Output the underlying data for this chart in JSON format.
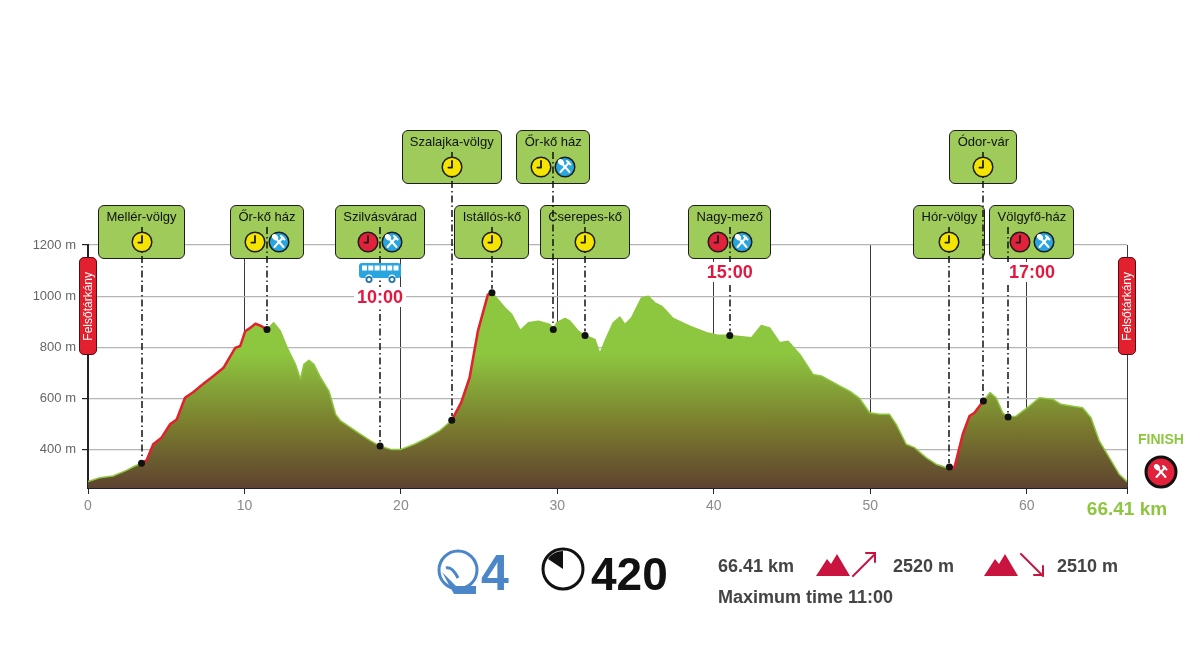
{
  "chart_data": {
    "type": "area",
    "x": [
      0,
      0.75,
      1.6,
      2.46,
      3.0,
      3.42,
      3.74,
      4.17,
      4.7,
      5.24,
      5.67,
      6.2,
      6.74,
      7.38,
      8.02,
      8.66,
      9.41,
      9.73,
      10.05,
      10.37,
      10.7,
      11.02,
      11.44,
      11.87,
      12.3,
      12.73,
      13.26,
      13.58,
      13.8,
      14.12,
      14.44,
      14.87,
      15.4,
      15.83,
      16.15,
      16.79,
      17.43,
      18.07,
      18.67,
      19.36,
      20.0,
      20.86,
      21.71,
      22.46,
      23.25,
      23.85,
      24.39,
      24.92,
      25.56,
      25.82,
      26.02,
      26.66,
      27.09,
      27.62,
      28.15,
      28.79,
      29.53,
      29.74,
      29.96,
      30.49,
      30.81,
      31.34,
      31.77,
      32.4,
      32.72,
      33.04,
      33.57,
      34.0,
      34.32,
      34.74,
      35.38,
      35.81,
      36.23,
      36.66,
      37.4,
      38.47,
      39.53,
      40.17,
      41.02,
      42.4,
      43.04,
      43.57,
      44.21,
      44.74,
      45.5,
      46.34,
      46.87,
      48.04,
      48.68,
      49.32,
      49.96,
      50.6,
      51.23,
      51.66,
      52.3,
      52.83,
      53.57,
      54.21,
      54.85,
      55.06,
      55.38,
      55.91,
      56.34,
      56.66,
      57.23,
      57.66,
      58.04,
      58.47,
      58.81,
      59.32,
      60.17,
      60.81,
      61.66,
      62.19,
      62.94,
      63.57,
      64.11,
      64.64,
      65.28,
      65.91,
      66.41
    ],
    "series": [
      {
        "type": "area",
        "color": "#e3202c",
        "x": [
          3.42,
          3.74,
          4.17,
          4.7,
          5.24,
          5.67,
          6.2,
          6.74,
          7.38,
          8.02,
          8.66,
          9.41,
          9.73,
          10.05,
          10.37,
          10.7,
          11.02,
          11.44
        ],
        "values": [
          347,
          358,
          421,
          447,
          499,
          518,
          603,
          625,
          658,
          688,
          720,
          798,
          805,
          863,
          876,
          892,
          885,
          870
        ]
      },
      {
        "type": "area",
        "color": "#e3202c",
        "x": [
          23.25,
          23.85,
          24.39,
          24.92,
          25.56,
          25.82
        ],
        "values": [
          515,
          584,
          681,
          863,
          1006,
          1013
        ]
      },
      {
        "type": "area",
        "color": "#e3202c",
        "x": [
          55.06,
          55.38,
          55.91,
          56.34,
          56.66,
          57.23
        ],
        "values": [
          332,
          330,
          460,
          531,
          544,
          590
        ]
      },
      {
        "color": "#8dc63f",
        "values": [
          275,
          290,
          297,
          319,
          336,
          347,
          358,
          421,
          447,
          499,
          518,
          603,
          625,
          658,
          688,
          720,
          798,
          805,
          863,
          876,
          892,
          885,
          870,
          896,
          863,
          798,
          733,
          675,
          733,
          749,
          733,
          681,
          629,
          538,
          512,
          486,
          460,
          434,
          414,
          401,
          401,
          421,
          447,
          473,
          515,
          584,
          681,
          863,
          1006,
          1013,
          1000,
          954,
          928,
          866,
          896,
          902,
          889,
          870,
          896,
          913,
          902,
          863,
          846,
          831,
          775,
          824,
          896,
          918,
          889,
          915,
          993,
          1000,
          974,
          961,
          913,
          883,
          857,
          848,
          846,
          837,
          885,
          876,
          818,
          824,
          772,
          694,
          688,
          649,
          629,
          600,
          544,
          538,
          538,
          499,
          421,
          408,
          369,
          343,
          330,
          332,
          330,
          460,
          531,
          544,
          590,
          623,
          603,
          544,
          528,
          531,
          570,
          603,
          597,
          577,
          570,
          564,
          525,
          434,
          369,
          304,
          275
        ]
      }
    ],
    "xlim": [
      0,
      66.41
    ],
    "ylim": [
      250,
      1200
    ],
    "xticks": [
      0,
      10,
      20,
      30,
      40,
      50,
      60,
      {
        "value": 66.41,
        "label": "66.41 km"
      }
    ],
    "yticks": [
      {
        "value": 400,
        "label": "400 m"
      },
      {
        "value": 600,
        "label": "600 m"
      },
      {
        "value": 800,
        "label": "800 m"
      },
      {
        "value": 1000,
        "label": "1000 m"
      },
      {
        "value": 1200,
        "label": "1200 m"
      }
    ],
    "grid": true,
    "annotations": [
      {
        "text": "Mellér-völgy",
        "x": 3.42,
        "y": 347
      },
      {
        "text": "Őr-kő ház",
        "x": 11.44,
        "y": 870
      },
      {
        "text": "Szilvásvárad",
        "x": 18.67,
        "y": 414
      },
      {
        "text": "Szalajka-völgy",
        "x": 23.25,
        "y": 515
      },
      {
        "text": "Istállós-kő",
        "x": 25.82,
        "y": 1013
      },
      {
        "text": "Őr-kő ház",
        "x": 29.74,
        "y": 870
      },
      {
        "text": "Cserepes-kő",
        "x": 31.77,
        "y": 846
      },
      {
        "text": "Nagy-mező",
        "x": 41.02,
        "y": 846
      },
      {
        "text": "Hór-völgy",
        "x": 55.06,
        "y": 332
      },
      {
        "text": "Ódor-vár",
        "x": 57.23,
        "y": 590
      },
      {
        "text": "Völgyfő-ház",
        "x": 58.81,
        "y": 528
      },
      "10:00",
      "15:00",
      "17:00",
      "Felsőtárkány",
      "Felsőtárkány",
      "FINISH",
      "66.41 km",
      "2520 m",
      "2510 m",
      "Maximum time 11:00",
      "4",
      "420"
    ]
  }
}
